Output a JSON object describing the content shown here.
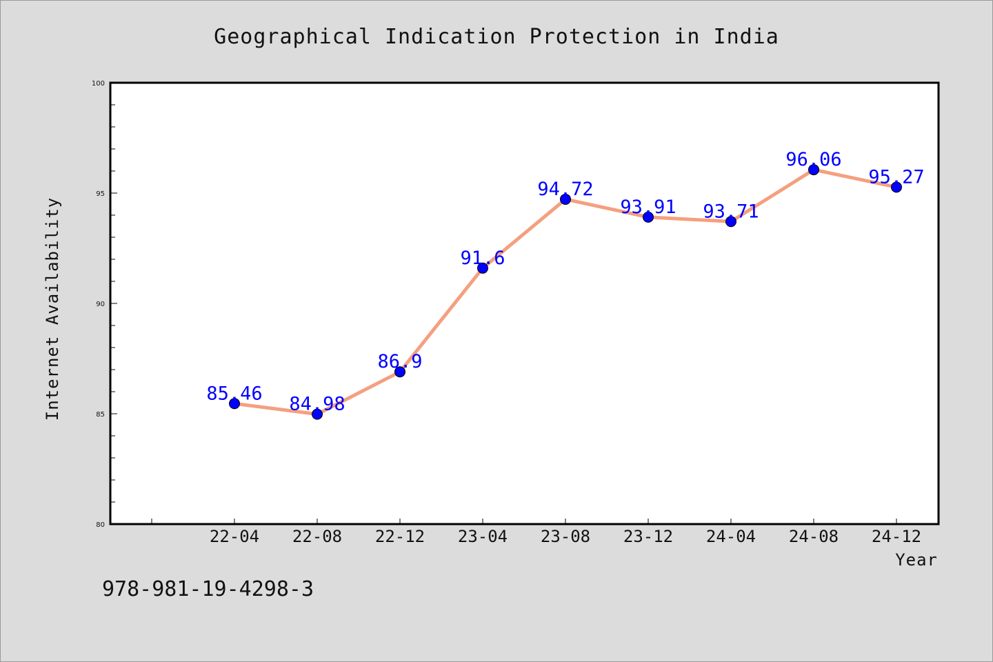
{
  "chart_data": {
    "type": "line",
    "title": "Geographical Indication Protection in India",
    "xlabel": "Year",
    "ylabel": "Internet Availability",
    "categories": [
      "22-04",
      "22-08",
      "22-12",
      "23-04",
      "23-08",
      "23-12",
      "24-04",
      "24-08",
      "24-12"
    ],
    "series": [
      {
        "values": [
          85.46,
          84.98,
          86.9,
          91.6,
          94.72,
          93.91,
          93.71,
          96.06,
          95.27
        ],
        "labels": [
          "85.46",
          "84.98",
          "86.9",
          "91.6",
          "94.72",
          "93.91",
          "93.71",
          "96.06",
          "95.27"
        ],
        "line_color": "#f4a07f",
        "marker_color": "#0000ff"
      }
    ],
    "ylim": [
      80,
      100
    ],
    "yticks": [
      80,
      85,
      90,
      95,
      100
    ],
    "ytick_labels": [
      "80",
      "85",
      "90",
      "95",
      "100"
    ],
    "grid": false,
    "legend": "none"
  },
  "footer": {
    "isbn": "978-981-19-4298-3"
  },
  "colors": {
    "background": "#dcdcdc",
    "plot_background": "#ffffff"
  }
}
